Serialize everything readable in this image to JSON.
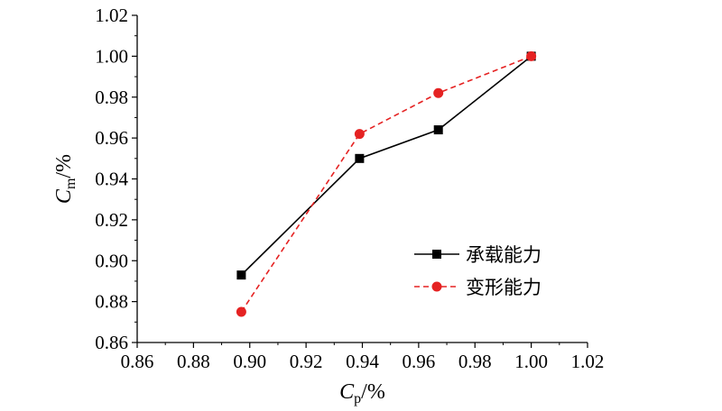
{
  "chart_data": {
    "type": "line",
    "xlabel": {
      "symbol": "C",
      "subscript": "p",
      "unit": "/%"
    },
    "ylabel": {
      "symbol": "C",
      "subscript": "m",
      "unit": "/%"
    },
    "xlim": [
      0.86,
      1.02
    ],
    "ylim": [
      0.86,
      1.02
    ],
    "xticks": [
      "0.86",
      "0.88",
      "0.90",
      "0.92",
      "0.94",
      "0.96",
      "0.98",
      "1.00",
      "1.02"
    ],
    "yticks": [
      "0.86",
      "0.88",
      "0.90",
      "0.92",
      "0.94",
      "0.96",
      "0.98",
      "1.00",
      "1.02"
    ],
    "grid": false,
    "legend_position": "right",
    "series": [
      {
        "name": "承载能力",
        "color": "#000000",
        "line_style": "solid",
        "marker": "square",
        "points": [
          {
            "x": 0.897,
            "y": 0.893
          },
          {
            "x": 0.939,
            "y": 0.95
          },
          {
            "x": 0.967,
            "y": 0.964
          },
          {
            "x": 1.0,
            "y": 1.0
          }
        ]
      },
      {
        "name": "变形能力",
        "color": "#e52222",
        "line_style": "dashed",
        "marker": "circle",
        "points": [
          {
            "x": 0.897,
            "y": 0.875
          },
          {
            "x": 0.939,
            "y": 0.962
          },
          {
            "x": 0.967,
            "y": 0.982
          },
          {
            "x": 1.0,
            "y": 1.0
          }
        ]
      }
    ]
  }
}
